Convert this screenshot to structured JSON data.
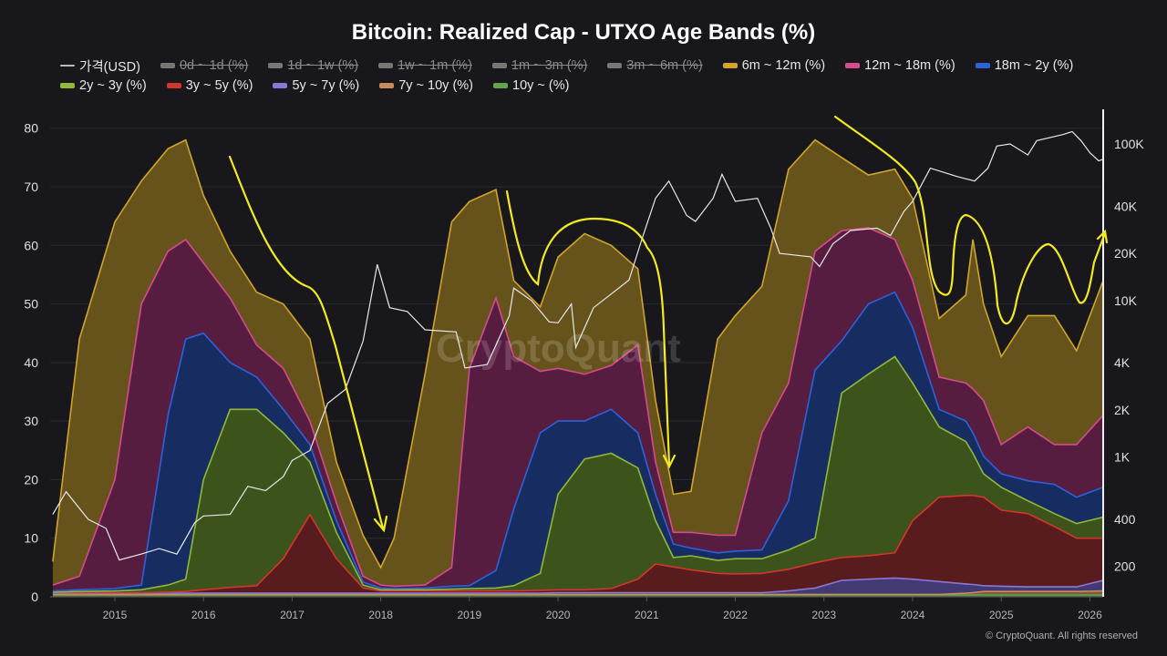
{
  "chart_data": {
    "type": "area",
    "stacked": true,
    "title": "Bitcoin: Realized Cap - UTXO Age Bands (%)",
    "xlim": [
      2014.27,
      2026.15
    ],
    "x_ticks": [
      "2015",
      "2016",
      "2017",
      "2018",
      "2019",
      "2020",
      "2021",
      "2022",
      "2023",
      "2024",
      "2025",
      "2026"
    ],
    "y_left": {
      "ylim": [
        0,
        84
      ],
      "ticks": [
        "0",
        "10",
        "20",
        "30",
        "40",
        "50",
        "60",
        "70",
        "80"
      ]
    },
    "y_right": {
      "scale": "log",
      "ylim": [
        128,
        178000
      ],
      "ticks": [
        "200",
        "400",
        "1K",
        "2K",
        "4K",
        "10K",
        "20K",
        "40K",
        "100K"
      ],
      "tick_values": [
        200,
        400,
        1000,
        2000,
        4000,
        10000,
        20000,
        40000,
        100000
      ]
    },
    "grid": true,
    "legend_position": "top",
    "x": [
      2014.3,
      2014.6,
      2015.0,
      2015.3,
      2015.6,
      2015.8,
      2016.0,
      2016.3,
      2016.6,
      2016.9,
      2017.2,
      2017.5,
      2017.8,
      2018.0,
      2018.15,
      2018.5,
      2018.8,
      2019.0,
      2019.3,
      2019.5,
      2019.8,
      2020.0,
      2020.3,
      2020.6,
      2020.9,
      2021.1,
      2021.3,
      2021.5,
      2021.8,
      2022.0,
      2022.3,
      2022.6,
      2022.9,
      2023.2,
      2023.5,
      2023.8,
      2024.0,
      2024.3,
      2024.6,
      2024.68,
      2024.8,
      2025.0,
      2025.3,
      2025.6,
      2025.85,
      2026.15
    ],
    "legend_hidden": [
      {
        "name": "0d ~ 1d (%)"
      },
      {
        "name": "1d ~ 1w (%)"
      },
      {
        "name": "1w ~ 1m (%)"
      },
      {
        "name": "1m ~ 3m (%)"
      },
      {
        "name": "3m ~ 6m (%)"
      }
    ],
    "series": [
      {
        "name": "10y ~ (%)",
        "color": "#5fa54c",
        "fill": "#3c6a30",
        "values": [
          0.3,
          0.3,
          0.3,
          0.3,
          0.3,
          0.3,
          0.3,
          0.3,
          0.3,
          0.3,
          0.3,
          0.3,
          0.3,
          0.3,
          0.3,
          0.3,
          0.3,
          0.3,
          0.3,
          0.3,
          0.3,
          0.3,
          0.3,
          0.3,
          0.3,
          0.3,
          0.3,
          0.3,
          0.3,
          0.3,
          0.3,
          0.3,
          0.3,
          0.3,
          0.3,
          0.3,
          0.3,
          0.3,
          0.3,
          0.3,
          0.3,
          0.3,
          0.3,
          0.3,
          0.3,
          0.3
        ]
      },
      {
        "name": "7y ~ 10y (%)",
        "color": "#c98a5c",
        "fill": "#8a5c3c",
        "values": [
          0.1,
          0.1,
          0.1,
          0.1,
          0.1,
          0.1,
          0.1,
          0.1,
          0.1,
          0.1,
          0.1,
          0.1,
          0.1,
          0.1,
          0.1,
          0.1,
          0.1,
          0.1,
          0.1,
          0.1,
          0.1,
          0.1,
          0.1,
          0.1,
          0.1,
          0.1,
          0.1,
          0.1,
          0.1,
          0.1,
          0.1,
          0.1,
          0.1,
          0.1,
          0.1,
          0.1,
          0.1,
          0.1,
          0.3,
          0.4,
          0.6,
          0.6,
          0.6,
          0.6,
          0.6,
          0.7
        ]
      },
      {
        "name": "5y ~ 7y (%)",
        "color": "#8a78d6",
        "fill": "#463c78",
        "values": [
          0.2,
          0.2,
          0.2,
          0.2,
          0.2,
          0.2,
          0.2,
          0.2,
          0.2,
          0.2,
          0.2,
          0.2,
          0.2,
          0.2,
          0.2,
          0.2,
          0.2,
          0.2,
          0.2,
          0.2,
          0.2,
          0.3,
          0.3,
          0.3,
          0.3,
          0.3,
          0.3,
          0.3,
          0.3,
          0.3,
          0.3,
          0.6,
          1.1,
          2.4,
          2.6,
          2.8,
          2.6,
          2.2,
          1.6,
          1.4,
          1.0,
          0.9,
          0.8,
          0.8,
          0.8,
          1.8
        ]
      },
      {
        "name": "3y ~ 5y (%)",
        "color": "#d4352c",
        "fill": "#5c1c20",
        "values": [
          0.1,
          0.1,
          0.1,
          0.1,
          0.2,
          0.3,
          0.6,
          1.0,
          1.3,
          5.9,
          13.4,
          5.9,
          0.9,
          0.4,
          0.4,
          0.4,
          0.4,
          0.4,
          0.4,
          0.4,
          0.5,
          0.5,
          0.5,
          0.7,
          2.3,
          4.9,
          4.4,
          3.9,
          3.3,
          3.2,
          3.3,
          3.7,
          4.3,
          3.9,
          4.0,
          4.3,
          10.0,
          14.4,
          15.1,
          15.2,
          15.1,
          13.0,
          12.5,
          10.3,
          8.3,
          7.2
        ]
      },
      {
        "name": "2y ~ 3y (%)",
        "color": "#8fb83a",
        "fill": "#3f561c",
        "values": [
          0.1,
          0.2,
          0.3,
          0.5,
          1.2,
          2.1,
          18.8,
          30.4,
          30.1,
          21.5,
          9.0,
          4.5,
          0.5,
          0.2,
          0.2,
          0.2,
          0.3,
          0.4,
          0.5,
          0.9,
          2.9,
          16.3,
          22.3,
          23.1,
          19.0,
          7.4,
          1.6,
          2.4,
          2.2,
          2.6,
          2.5,
          3.3,
          4.2,
          28.1,
          31.0,
          33.5,
          23.5,
          12.0,
          9.2,
          7.2,
          4.0,
          3.9,
          2.2,
          2.2,
          2.5,
          3.6
        ]
      },
      {
        "name": "18m ~ 2y (%)",
        "color": "#2d62d8",
        "fill": "#172e66",
        "values": [
          0.2,
          0.3,
          0.4,
          0.8,
          29.0,
          41.0,
          25.0,
          8.0,
          5.5,
          4.0,
          3.0,
          2.0,
          0.5,
          0.3,
          0.2,
          0.3,
          0.5,
          0.5,
          3.0,
          13.1,
          24.0,
          12.5,
          6.5,
          7.5,
          6.0,
          4.5,
          2.3,
          1.3,
          1.3,
          1.3,
          1.5,
          8.4,
          28.7,
          8.9,
          12.0,
          11.0,
          9.5,
          3.0,
          3.5,
          3.5,
          3.0,
          2.3,
          3.4,
          5.0,
          4.5,
          5.1
        ]
      },
      {
        "name": "12m ~ 18m (%)",
        "color": "#d64a8e",
        "fill": "#5a1e42",
        "values": [
          1.0,
          2.3,
          18.6,
          48.0,
          28.0,
          17.0,
          12.0,
          11.0,
          5.5,
          7.0,
          4.0,
          3.0,
          1.0,
          0.5,
          0.4,
          0.5,
          3.2,
          37.1,
          46.5,
          26.0,
          10.5,
          9.0,
          8.0,
          7.5,
          15.0,
          5.5,
          2.0,
          2.7,
          3.0,
          2.7,
          20.0,
          20.1,
          20.3,
          18.8,
          13.0,
          9.0,
          8.0,
          5.5,
          6.5,
          7.5,
          9.5,
          5.0,
          9.2,
          6.8,
          9.0,
          12.3
        ]
      },
      {
        "name": "6m ~ 12m (%)",
        "color": "#d0a52a",
        "fill": "#6a561c",
        "values": [
          4.0,
          40.5,
          44.0,
          21.0,
          17.5,
          17.0,
          11.5,
          8.0,
          9.0,
          11.0,
          14.0,
          7.0,
          7.0,
          3.0,
          8.2,
          36.0,
          59.0,
          28.5,
          18.5,
          13.0,
          11.0,
          19.0,
          24.0,
          20.5,
          13.0,
          10.5,
          6.5,
          7.0,
          33.5,
          37.5,
          25.0,
          36.5,
          19.0,
          12.5,
          9.0,
          12.0,
          14.0,
          10.0,
          15.0,
          25.5,
          16.5,
          15.0,
          19.0,
          22.0,
          16.0,
          23.0
        ]
      }
    ],
    "price": {
      "name": "가격(USD)",
      "color": "#e8e8e8",
      "axis": "right",
      "x": [
        2014.3,
        2014.45,
        2014.7,
        2014.9,
        2015.05,
        2015.3,
        2015.5,
        2015.7,
        2015.9,
        2016.0,
        2016.3,
        2016.5,
        2016.7,
        2016.9,
        2017.0,
        2017.2,
        2017.4,
        2017.6,
        2017.8,
        2017.96,
        2018.1,
        2018.3,
        2018.5,
        2018.85,
        2018.95,
        2019.2,
        2019.45,
        2019.5,
        2019.7,
        2019.9,
        2020.0,
        2020.15,
        2020.2,
        2020.4,
        2020.6,
        2020.8,
        2020.95,
        2021.1,
        2021.25,
        2021.45,
        2021.55,
        2021.75,
        2021.85,
        2022.0,
        2022.25,
        2022.4,
        2022.5,
        2022.85,
        2022.95,
        2023.1,
        2023.3,
        2023.6,
        2023.75,
        2023.9,
        2024.0,
        2024.2,
        2024.5,
        2024.7,
        2024.85,
        2024.95,
        2025.1,
        2025.3,
        2025.4,
        2025.7,
        2025.8,
        2025.9,
        2026.0,
        2026.1,
        2026.15
      ],
      "y": [
        430,
        600,
        400,
        350,
        220,
        240,
        260,
        240,
        380,
        420,
        430,
        650,
        610,
        750,
        950,
        1100,
        2200,
        2700,
        5500,
        17000,
        9000,
        8500,
        6500,
        6300,
        3700,
        3900,
        8000,
        12000,
        10000,
        7300,
        7200,
        9500,
        5000,
        9000,
        11000,
        13500,
        25000,
        45000,
        58000,
        35000,
        32000,
        45000,
        64000,
        43000,
        45000,
        29000,
        20000,
        19000,
        16500,
        23000,
        28000,
        29000,
        26000,
        37000,
        43000,
        70000,
        62000,
        58000,
        70000,
        97000,
        100000,
        85000,
        105000,
        115000,
        120000,
        105000,
        88000,
        78000,
        80000
      ]
    },
    "annotations": "hand-drawn yellow arrows"
  },
  "watermark": "CryptoQuant",
  "copyright": "© CryptoQuant. All rights reserved"
}
